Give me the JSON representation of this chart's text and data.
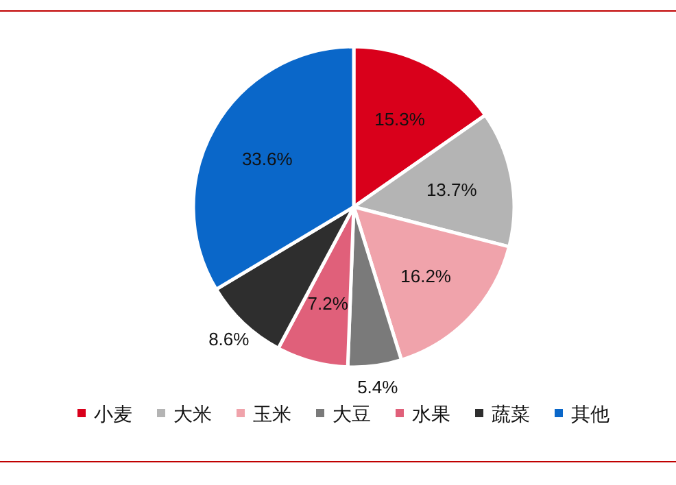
{
  "chart_data": {
    "type": "pie",
    "categories": [
      "小麦",
      "大米",
      "玉米",
      "大豆",
      "水果",
      "蔬菜",
      "其他"
    ],
    "values": [
      15.3,
      13.7,
      16.2,
      5.4,
      7.2,
      8.6,
      33.6
    ],
    "colors": [
      "#d9001b",
      "#b4b4b4",
      "#f0a3ab",
      "#7a7a7a",
      "#e0607a",
      "#2e2e2e",
      "#0a67c9"
    ],
    "value_labels": [
      "15.3%",
      "13.7%",
      "16.2%",
      "5.4%",
      "7.2%",
      "8.6%",
      "33.6%"
    ],
    "legend": "bottom"
  }
}
